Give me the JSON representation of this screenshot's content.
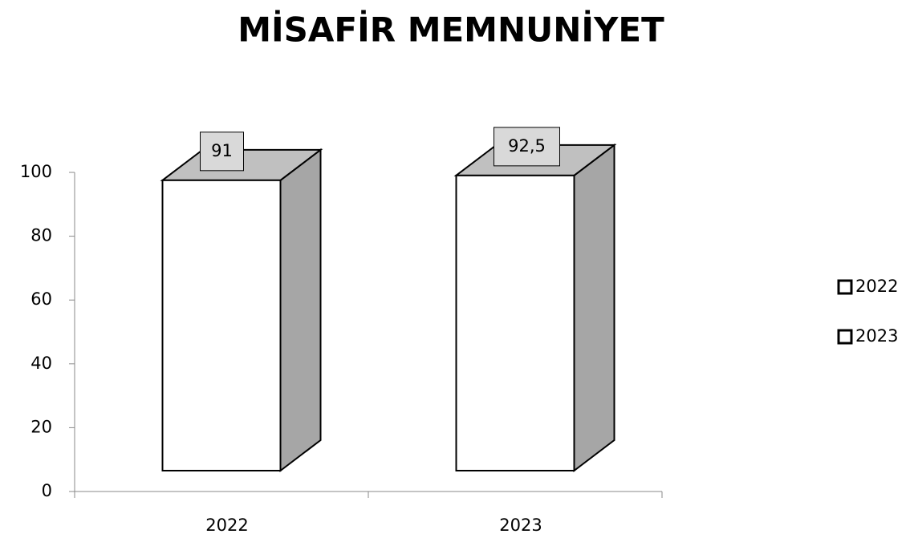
{
  "chart_data": {
    "type": "bar3d",
    "title": "MİSAFİR MEMNUNİYET",
    "categories": [
      "2022",
      "2023"
    ],
    "series": [
      {
        "name": "2022",
        "color": "#ffffff",
        "values": [
          91,
          null
        ]
      },
      {
        "name": "2023",
        "color": "#ffffff",
        "values": [
          null,
          92.5
        ],
        "value_labels": [
          null,
          "92,5"
        ]
      }
    ],
    "ylim": [
      0,
      100
    ],
    "yticks": [
      0,
      20,
      40,
      60,
      80,
      100
    ],
    "legend": "right"
  }
}
